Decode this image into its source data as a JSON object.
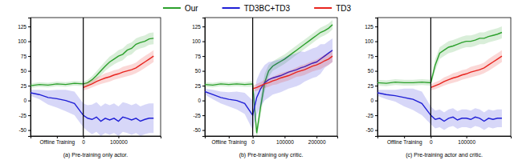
{
  "chart_data": [
    {
      "type": "line",
      "title": "(a) Pre-training only actor.",
      "legend": "top",
      "x": [
        -150000,
        -125000,
        -100000,
        -75000,
        -50000,
        -25000,
        0,
        12500,
        25000,
        37500,
        50000,
        62500,
        75000,
        87500,
        100000,
        112500,
        125000,
        137500,
        150000,
        162500,
        175000,
        187500,
        200000
      ],
      "xlim": [
        -150000,
        220000
      ],
      "ylim": [
        -60,
        140
      ],
      "xticks": [
        {
          "value": -75000,
          "label": "Offline Training"
        },
        0,
        100000
      ],
      "yticks": [
        -50,
        -25,
        0,
        25,
        50,
        75,
        100,
        125
      ],
      "vline": 0,
      "series": [
        {
          "name": "Our",
          "color": "#2ca02c",
          "values": [
            25,
            27,
            26,
            28,
            27,
            29,
            28,
            30,
            35,
            42,
            50,
            58,
            65,
            70,
            75,
            78,
            85,
            88,
            95,
            98,
            100,
            104,
            105
          ],
          "error": [
            4,
            4,
            4,
            4,
            4,
            4,
            4,
            5,
            6,
            7,
            8,
            8,
            9,
            9,
            10,
            10,
            10,
            10,
            10,
            10,
            10,
            10,
            10
          ]
        },
        {
          "name": "TD3BC+TD3",
          "color": "#1f1fd6",
          "values": [
            13,
            10,
            5,
            3,
            0,
            -5,
            -25,
            -30,
            -32,
            -28,
            -35,
            -30,
            -33,
            -30,
            -35,
            -28,
            -30,
            -33,
            -30,
            -35,
            -32,
            -30,
            -30
          ],
          "error": [
            5,
            8,
            12,
            15,
            18,
            20,
            20,
            22,
            25,
            25,
            25,
            25,
            25,
            25,
            25,
            25,
            25,
            25,
            25,
            25,
            25,
            25,
            25
          ]
        },
        {
          "name": "TD3",
          "color": "#e8251f",
          "values": [
            null,
            null,
            null,
            null,
            null,
            null,
            22,
            25,
            28,
            32,
            35,
            38,
            40,
            43,
            45,
            48,
            50,
            52,
            55,
            60,
            65,
            70,
            75
          ],
          "error": [
            null,
            null,
            null,
            null,
            null,
            null,
            5,
            6,
            6,
            7,
            7,
            8,
            8,
            8,
            8,
            9,
            9,
            9,
            9,
            10,
            10,
            10,
            10
          ]
        }
      ]
    },
    {
      "type": "line",
      "title": "(b) Pre-training only critic.",
      "x": [
        -150000,
        -125000,
        -100000,
        -75000,
        -50000,
        -25000,
        0,
        12500,
        25000,
        37500,
        50000,
        62500,
        75000,
        87500,
        100000,
        112500,
        125000,
        137500,
        150000,
        162500,
        175000,
        187500,
        200000,
        212500,
        225000,
        237500,
        250000
      ],
      "xlim": [
        -150000,
        265000
      ],
      "ylim": [
        -60,
        140
      ],
      "xticks": [
        {
          "value": -75000,
          "label": "Offline Training"
        },
        0,
        100000,
        200000
      ],
      "yticks": [
        -50,
        -25,
        0,
        25,
        50,
        75,
        100,
        125
      ],
      "vline": 0,
      "series": [
        {
          "color": "#2ca02c",
          "values": [
            27,
            26,
            28,
            27,
            28,
            27,
            28,
            -55,
            -10,
            30,
            50,
            58,
            62,
            66,
            70,
            75,
            80,
            85,
            90,
            95,
            100,
            105,
            110,
            115,
            118,
            122,
            128
          ],
          "error": [
            4,
            4,
            4,
            4,
            4,
            4,
            5,
            10,
            15,
            15,
            10,
            8,
            8,
            8,
            8,
            8,
            8,
            8,
            8,
            8,
            8,
            8,
            8,
            8,
            8,
            8,
            8
          ]
        },
        {
          "color": "#1f1fd6",
          "values": [
            15,
            10,
            5,
            2,
            0,
            -5,
            -25,
            5,
            20,
            30,
            35,
            38,
            40,
            42,
            45,
            48,
            50,
            52,
            55,
            57,
            60,
            63,
            65,
            70,
            75,
            80,
            85
          ],
          "error": [
            5,
            8,
            10,
            12,
            15,
            18,
            25,
            30,
            30,
            30,
            30,
            28,
            28,
            28,
            28,
            28,
            28,
            28,
            28,
            25,
            25,
            25,
            25,
            25,
            20,
            20,
            20
          ]
        },
        {
          "color": "#e8251f",
          "values": [
            null,
            null,
            null,
            null,
            null,
            null,
            20,
            22,
            25,
            28,
            30,
            33,
            35,
            38,
            40,
            42,
            45,
            48,
            50,
            52,
            55,
            58,
            60,
            63,
            67,
            70,
            75
          ],
          "error": [
            null,
            null,
            null,
            null,
            null,
            null,
            5,
            6,
            6,
            7,
            7,
            7,
            8,
            8,
            8,
            8,
            8,
            8,
            9,
            9,
            9,
            9,
            9,
            10,
            10,
            10,
            10
          ]
        }
      ]
    },
    {
      "type": "line",
      "title": "(c) Pre-training actor and critic.",
      "x": [
        -150000,
        -125000,
        -100000,
        -75000,
        -50000,
        -25000,
        0,
        12500,
        25000,
        37500,
        50000,
        62500,
        75000,
        87500,
        100000,
        112500,
        125000,
        137500,
        150000,
        162500,
        175000,
        187500,
        200000
      ],
      "xlim": [
        -150000,
        225000
      ],
      "ylim": [
        -60,
        140
      ],
      "xticks": [
        {
          "value": -75000,
          "label": "Offline Training"
        },
        0,
        100000
      ],
      "yticks": [
        -50,
        -25,
        0,
        25,
        50,
        75,
        100,
        125
      ],
      "vline": 0,
      "series": [
        {
          "color": "#2ca02c",
          "values": [
            30,
            29,
            31,
            30,
            30,
            31,
            30,
            60,
            80,
            85,
            90,
            92,
            95,
            98,
            100,
            100,
            102,
            105,
            105,
            108,
            110,
            112,
            115
          ],
          "error": [
            5,
            5,
            5,
            5,
            5,
            5,
            5,
            10,
            10,
            10,
            10,
            10,
            10,
            10,
            10,
            10,
            10,
            10,
            10,
            10,
            10,
            10,
            10
          ]
        },
        {
          "color": "#1f1fd6",
          "values": [
            13,
            10,
            8,
            5,
            2,
            -5,
            -25,
            -32,
            -30,
            -35,
            -30,
            -28,
            -33,
            -30,
            -30,
            -32,
            -28,
            -30,
            -35,
            -30,
            -32,
            -30,
            -30
          ],
          "error": [
            5,
            8,
            10,
            15,
            18,
            20,
            15,
            15,
            15,
            15,
            15,
            15,
            15,
            15,
            15,
            15,
            15,
            15,
            15,
            15,
            15,
            15,
            15
          ]
        },
        {
          "color": "#e8251f",
          "values": [
            null,
            null,
            null,
            null,
            null,
            null,
            22,
            25,
            28,
            32,
            35,
            38,
            40,
            43,
            45,
            48,
            50,
            52,
            55,
            60,
            65,
            70,
            75
          ],
          "error": [
            null,
            null,
            null,
            null,
            null,
            null,
            5,
            6,
            6,
            7,
            7,
            8,
            8,
            8,
            8,
            9,
            9,
            9,
            9,
            10,
            10,
            10,
            10
          ]
        }
      ]
    }
  ]
}
